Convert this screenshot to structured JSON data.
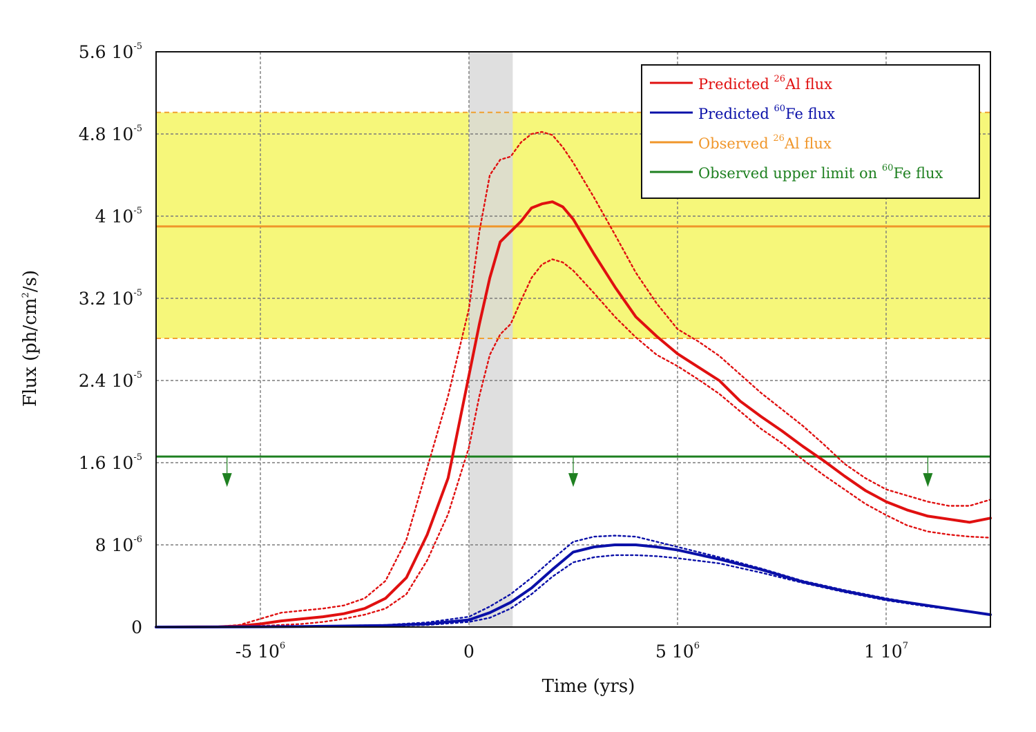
{
  "chart_data": {
    "type": "line",
    "xlabel": "Time (yrs)",
    "ylabel": "Flux (ph/cm2/s)",
    "ylabel_parts": [
      "Flux (ph/cm",
      "2",
      "/s)"
    ],
    "xlim": [
      -7500000,
      12500000
    ],
    "ylim": [
      0,
      5.6e-05
    ],
    "grid": true,
    "x_ticks": [
      {
        "value": -5000000,
        "mantissa": "-5 10",
        "exp": "6"
      },
      {
        "value": 0,
        "mantissa": "0",
        "exp": ""
      },
      {
        "value": 5000000,
        "mantissa": "5 10",
        "exp": "6"
      },
      {
        "value": 10000000,
        "mantissa": "1 10",
        "exp": "7"
      }
    ],
    "y_ticks": [
      {
        "value": 0,
        "mantissa": "0",
        "exp": ""
      },
      {
        "value": 8e-06,
        "mantissa": "8 10",
        "exp": "-6"
      },
      {
        "value": 1.6e-05,
        "mantissa": "1.6 10",
        "exp": "-5"
      },
      {
        "value": 2.4e-05,
        "mantissa": "2.4 10",
        "exp": "-5"
      },
      {
        "value": 3.2e-05,
        "mantissa": "3.2 10",
        "exp": "-5"
      },
      {
        "value": 4e-05,
        "mantissa": "4 10",
        "exp": "-5"
      },
      {
        "value": 4.8e-05,
        "mantissa": "4.8 10",
        "exp": "-5"
      },
      {
        "value": 5.6e-05,
        "mantissa": "5.6 10",
        "exp": "-5"
      }
    ],
    "shaded_time_band": {
      "x0": 0,
      "x1": 1050000,
      "color": "#d9d9d9"
    },
    "observed_al_band": {
      "y_low": 2.81e-05,
      "y_high": 5.01e-05,
      "fill": "#f6f77a",
      "edge_color": "#f0a030"
    },
    "legend_position": "top-right",
    "legend": [
      {
        "color": "#e01010",
        "pre": "Predicted ",
        "sup": "26",
        "post": "Al flux"
      },
      {
        "color": "#0a10a8",
        "pre": "Predicted ",
        "sup": "60",
        "post": "Fe flux"
      },
      {
        "color": "#f0962a",
        "pre": "Observed ",
        "sup": "26",
        "post": "Al flux"
      },
      {
        "color": "#1e8020",
        "pre": "Observed upper limit on ",
        "sup": "60",
        "post": "Fe flux"
      }
    ],
    "observed_al_flux": {
      "y": 3.9e-05,
      "color": "#f0962a"
    },
    "observed_fe_upper_limit": {
      "y": 1.66e-05,
      "color": "#1e8020",
      "arrow_x": [
        -5800000,
        2500000,
        11000000
      ]
    },
    "series": [
      {
        "name": "Predicted 26Al flux",
        "color": "#e01010",
        "x": [
          -7500000,
          -6000000,
          -5500000,
          -5000000,
          -4500000,
          -4000000,
          -3500000,
          -3000000,
          -2500000,
          -2000000,
          -1500000,
          -1000000,
          -500000,
          0,
          250000,
          500000,
          750000,
          1000000,
          1250000,
          1500000,
          1750000,
          2000000,
          2250000,
          2500000,
          3000000,
          3500000,
          4000000,
          4500000,
          5000000,
          5500000,
          6000000,
          6500000,
          7000000,
          7500000,
          8000000,
          8500000,
          9000000,
          9500000,
          10000000,
          10500000,
          11000000,
          11500000,
          12000000,
          12500000
        ],
        "y": [
          0,
          3e-08,
          1e-07,
          3e-07,
          6e-07,
          8e-07,
          1e-06,
          1.3e-06,
          1.8e-06,
          2.8e-06,
          4.8e-06,
          9e-06,
          1.45e-05,
          2.45e-05,
          2.95e-05,
          3.4e-05,
          3.75e-05,
          3.85e-05,
          3.95e-05,
          4.08e-05,
          4.12e-05,
          4.14e-05,
          4.09e-05,
          3.97e-05,
          3.63e-05,
          3.31e-05,
          3.02e-05,
          2.83e-05,
          2.66e-05,
          2.53e-05,
          2.4e-05,
          2.2e-05,
          2.05e-05,
          1.91e-05,
          1.76e-05,
          1.62e-05,
          1.47e-05,
          1.33e-05,
          1.22e-05,
          1.14e-05,
          1.08e-05,
          1.05e-05,
          1.02e-05,
          1.06e-05
        ]
      },
      {
        "name": "Predicted 26Al flux (upper bound)",
        "color": "#e01010",
        "x": [
          -7500000,
          -6000000,
          -5500000,
          -5000000,
          -4500000,
          -4000000,
          -3500000,
          -3000000,
          -2500000,
          -2000000,
          -1500000,
          -1000000,
          -500000,
          0,
          250000,
          500000,
          750000,
          1000000,
          1250000,
          1500000,
          1750000,
          2000000,
          2250000,
          2500000,
          3000000,
          3500000,
          4000000,
          4500000,
          5000000,
          5500000,
          6000000,
          6500000,
          7000000,
          7500000,
          8000000,
          8500000,
          9000000,
          9500000,
          10000000,
          10500000,
          11000000,
          11500000,
          12000000,
          12500000
        ],
        "y": [
          0,
          5e-08,
          2e-07,
          8e-07,
          1.4e-06,
          1.6e-06,
          1.8e-06,
          2.1e-06,
          2.8e-06,
          4.5e-06,
          8.5e-06,
          1.55e-05,
          2.25e-05,
          3.1e-05,
          3.85e-05,
          4.4e-05,
          4.55e-05,
          4.58e-05,
          4.72e-05,
          4.8e-05,
          4.82e-05,
          4.79e-05,
          4.67e-05,
          4.52e-05,
          4.18e-05,
          3.82e-05,
          3.45e-05,
          3.15e-05,
          2.9e-05,
          2.78e-05,
          2.64e-05,
          2.46e-05,
          2.28e-05,
          2.12e-05,
          1.96e-05,
          1.78e-05,
          1.59e-05,
          1.45e-05,
          1.34e-05,
          1.28e-05,
          1.22e-05,
          1.18e-05,
          1.18e-05,
          1.24e-05
        ]
      },
      {
        "name": "Predicted 26Al flux (lower bound)",
        "color": "#e01010",
        "x": [
          -7500000,
          -6000000,
          -5500000,
          -5000000,
          -4500000,
          -4000000,
          -3500000,
          -3000000,
          -2500000,
          -2000000,
          -1500000,
          -1000000,
          -500000,
          0,
          250000,
          500000,
          750000,
          1000000,
          1250000,
          1500000,
          1750000,
          2000000,
          2250000,
          2500000,
          3000000,
          3500000,
          4000000,
          4500000,
          5000000,
          5500000,
          6000000,
          6500000,
          7000000,
          7500000,
          8000000,
          8500000,
          9000000,
          9500000,
          10000000,
          10500000,
          11000000,
          11500000,
          12000000,
          12500000
        ],
        "y": [
          0,
          2e-08,
          5e-08,
          1e-07,
          2e-07,
          3e-07,
          5e-07,
          8e-07,
          1.2e-06,
          1.8e-06,
          3.2e-06,
          6.5e-06,
          1.1e-05,
          1.75e-05,
          2.25e-05,
          2.65e-05,
          2.85e-05,
          2.95e-05,
          3.18e-05,
          3.4e-05,
          3.53e-05,
          3.58e-05,
          3.55e-05,
          3.47e-05,
          3.25e-05,
          3.02e-05,
          2.82e-05,
          2.65e-05,
          2.54e-05,
          2.41e-05,
          2.27e-05,
          2.1e-05,
          1.93e-05,
          1.79e-05,
          1.63e-05,
          1.48e-05,
          1.34e-05,
          1.2e-05,
          1.09e-05,
          9.9e-06,
          9.3e-06,
          9e-06,
          8.8e-06,
          8.7e-06
        ]
      },
      {
        "name": "Predicted 60Fe flux",
        "color": "#0a10a8",
        "x": [
          -7500000,
          -6000000,
          -4000000,
          -2000000,
          -1000000,
          0,
          500000,
          1000000,
          1500000,
          2000000,
          2500000,
          3000000,
          3500000,
          4000000,
          4500000,
          5000000,
          6000000,
          7000000,
          8000000,
          9000000,
          10000000,
          11000000,
          12000000,
          12500000
        ],
        "y": [
          0,
          1e-08,
          5e-08,
          1.5e-07,
          3e-07,
          7e-07,
          1.4e-06,
          2.4e-06,
          3.8e-06,
          5.6e-06,
          7.3e-06,
          7.8e-06,
          8e-06,
          8e-06,
          7.8e-06,
          7.5e-06,
          6.6e-06,
          5.6e-06,
          4.4e-06,
          3.5e-06,
          2.7e-06,
          2.1e-06,
          1.5e-06,
          1.2e-06
        ]
      },
      {
        "name": "Predicted 60Fe flux (upper bound)",
        "color": "#0a10a8",
        "x": [
          -7500000,
          -6000000,
          -4000000,
          -2000000,
          -1000000,
          0,
          500000,
          1000000,
          1500000,
          2000000,
          2500000,
          3000000,
          3500000,
          4000000,
          4500000,
          5000000,
          6000000,
          7000000,
          8000000,
          9000000,
          10000000,
          11000000,
          12000000,
          12500000
        ],
        "y": [
          0,
          2e-08,
          7e-08,
          2e-07,
          4.5e-07,
          1e-06,
          2e-06,
          3.2e-06,
          4.8e-06,
          6.6e-06,
          8.3e-06,
          8.8e-06,
          8.9e-06,
          8.8e-06,
          8.3e-06,
          7.8e-06,
          6.8e-06,
          5.7e-06,
          4.5e-06,
          3.6e-06,
          2.8e-06,
          2.1e-06,
          1.5e-06,
          1.2e-06
        ]
      },
      {
        "name": "Predicted 60Fe flux (lower bound)",
        "color": "#0a10a8",
        "x": [
          -7500000,
          -6000000,
          -4000000,
          -2000000,
          -1000000,
          0,
          500000,
          1000000,
          1500000,
          2000000,
          2500000,
          3000000,
          3500000,
          4000000,
          4500000,
          5000000,
          6000000,
          7000000,
          8000000,
          9000000,
          10000000,
          11000000,
          12000000,
          12500000
        ],
        "y": [
          0,
          1e-08,
          3e-08,
          1e-07,
          2e-07,
          5e-07,
          9e-07,
          1.8e-06,
          3.2e-06,
          4.9e-06,
          6.3e-06,
          6.8e-06,
          7e-06,
          7e-06,
          6.9e-06,
          6.7e-06,
          6.2e-06,
          5.3e-06,
          4.3e-06,
          3.4e-06,
          2.6e-06,
          2e-06,
          1.5e-06,
          1.2e-06
        ]
      }
    ]
  }
}
